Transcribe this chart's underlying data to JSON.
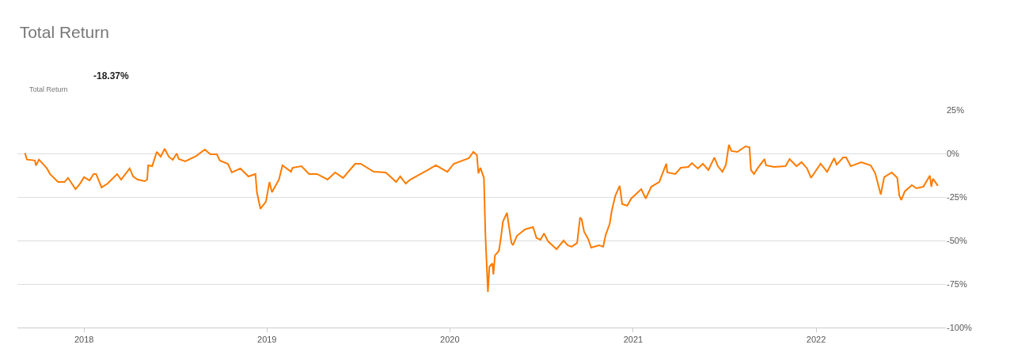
{
  "chart_data": {
    "type": "line",
    "title": "Total Return",
    "annotations": [
      "-18.37%",
      "Total Return"
    ],
    "x": [
      "2017-09-05",
      "2017-09-09",
      "2017-09-25",
      "2017-09-27",
      "2017-10-03",
      "2017-10-19",
      "2017-10-25",
      "2017-11-10",
      "2017-11-23",
      "2017-11-30",
      "2017-12-15",
      "2017-12-24",
      "2018-01-01",
      "2018-01-12",
      "2018-01-20",
      "2018-01-25",
      "2018-02-05",
      "2018-02-17",
      "2018-03-08",
      "2018-03-16",
      "2018-04-02",
      "2018-04-09",
      "2018-04-18",
      "2018-05-02",
      "2018-05-07",
      "2018-05-09",
      "2018-05-17",
      "2018-05-26",
      "2018-06-03",
      "2018-06-11",
      "2018-06-19",
      "2018-06-27",
      "2018-07-05",
      "2018-07-09",
      "2018-07-22",
      "2018-08-13",
      "2018-08-30",
      "2018-09-10",
      "2018-09-23",
      "2018-09-29",
      "2018-10-15",
      "2018-10-23",
      "2018-11-09",
      "2018-11-25",
      "2018-12-09",
      "2018-12-12",
      "2018-12-19",
      "2018-12-30",
      "2019-01-06",
      "2019-01-11",
      "2019-01-25",
      "2019-02-01",
      "2019-02-18",
      "2019-02-21",
      "2019-03-11",
      "2019-03-26",
      "2019-04-11",
      "2019-05-02",
      "2019-05-17",
      "2019-06-02",
      "2019-06-26",
      "2019-07-07",
      "2019-08-02",
      "2019-08-26",
      "2019-09-16",
      "2019-09-24",
      "2019-10-05",
      "2019-10-14",
      "2019-11-18",
      "2019-12-04",
      "2019-12-27",
      "2020-01-09",
      "2020-02-08",
      "2020-02-17",
      "2020-02-24",
      "2020-02-27",
      "2020-03-02",
      "2020-03-09",
      "2020-03-12",
      "2020-03-17",
      "2020-03-20",
      "2020-03-26",
      "2020-03-28",
      "2020-03-31",
      "2020-04-08",
      "2020-04-12",
      "2020-04-16",
      "2020-04-24",
      "2020-05-03",
      "2020-05-06",
      "2020-05-14",
      "2020-05-30",
      "2020-06-15",
      "2020-06-22",
      "2020-06-30",
      "2020-07-07",
      "2020-07-15",
      "2020-08-01",
      "2020-08-15",
      "2020-08-23",
      "2020-08-31",
      "2020-09-11",
      "2020-09-17",
      "2020-09-20",
      "2020-09-25",
      "2020-10-03",
      "2020-10-09",
      "2020-10-25",
      "2020-11-02",
      "2020-11-07",
      "2020-11-15",
      "2020-11-19",
      "2020-11-26",
      "2020-12-05",
      "2020-12-10",
      "2020-12-20",
      "2020-12-28",
      "2021-01-17",
      "2021-01-26",
      "2021-02-06",
      "2021-02-22",
      "2021-03-08",
      "2021-03-10",
      "2021-03-26",
      "2021-04-06",
      "2021-04-21",
      "2021-04-28",
      "2021-05-10",
      "2021-05-20",
      "2021-05-31",
      "2021-06-12",
      "2021-06-19",
      "2021-06-28",
      "2021-07-05",
      "2021-07-11",
      "2021-07-16",
      "2021-07-28",
      "2021-08-13",
      "2021-08-21",
      "2021-08-24",
      "2021-08-30",
      "2021-09-06",
      "2021-09-20",
      "2021-09-23",
      "2021-10-09",
      "2021-11-01",
      "2021-11-09",
      "2021-11-23",
      "2021-12-03",
      "2021-12-14",
      "2021-12-22",
      "2022-01-10",
      "2022-01-23",
      "2022-02-06",
      "2022-02-11",
      "2022-02-24",
      "2022-03-02",
      "2022-03-11",
      "2022-04-01",
      "2022-04-20",
      "2022-04-29",
      "2022-05-10",
      "2022-05-17",
      "2022-06-01",
      "2022-06-12",
      "2022-06-16",
      "2022-06-20",
      "2022-06-27",
      "2022-07-11",
      "2022-07-20",
      "2022-08-03",
      "2022-08-16",
      "2022-08-19",
      "2022-08-22",
      "2022-09-01"
    ],
    "series": [
      {
        "color": "#ff7b00",
        "values": [
          0.3,
          -3.5,
          -4,
          -7,
          -3.5,
          -8.6,
          -11.8,
          -16.4,
          -16.4,
          -14,
          -20.5,
          -17.3,
          -13.6,
          -15.5,
          -11.8,
          -11.8,
          -19.5,
          -17.3,
          -11.8,
          -15,
          -8.6,
          -13.2,
          -15,
          -15.9,
          -15,
          -6.8,
          -7.3,
          0.9,
          -1.8,
          2.7,
          -1.8,
          -3.6,
          0,
          -3.2,
          -4.5,
          -1.4,
          2.3,
          -0.5,
          -0.5,
          -4.1,
          -5.9,
          -10.9,
          -8.6,
          -13.2,
          -11.8,
          -22.3,
          -31.8,
          -27.7,
          -16.4,
          -22.3,
          -15,
          -6.8,
          -10.5,
          -8.2,
          -7.3,
          -11.8,
          -11.8,
          -15,
          -10.9,
          -14,
          -5.9,
          -5.9,
          -10.5,
          -10.9,
          -16.4,
          -13.2,
          -17.3,
          -15,
          -9.5,
          -6.8,
          -10.5,
          -5.9,
          -2.7,
          0.9,
          -0.9,
          -11.4,
          -8.2,
          -14,
          -46.8,
          -79.5,
          -65,
          -63.2,
          -69.5,
          -58.6,
          -55.9,
          -48.2,
          -39.1,
          -34.1,
          -51.4,
          -52.7,
          -47.3,
          -43.6,
          -42.3,
          -48.6,
          -49.5,
          -45.9,
          -50.5,
          -55,
          -50,
          -52.7,
          -53.6,
          -51.4,
          -36.8,
          -37.7,
          -45,
          -49.1,
          -54.1,
          -52.7,
          -53.6,
          -46.8,
          -40.5,
          -33.2,
          -24.5,
          -18.6,
          -29.1,
          -30,
          -25.9,
          -20.5,
          -25.9,
          -19.1,
          -16.4,
          -5.9,
          -10.9,
          -11.8,
          -8.2,
          -7.7,
          -5.5,
          -8.6,
          -5.9,
          -9.5,
          -2.3,
          -7.3,
          -10.5,
          -6.4,
          5,
          1.4,
          0.9,
          4.1,
          3.6,
          -9.5,
          -11.8,
          -8.6,
          -3.2,
          -6.8,
          -7.7,
          -7.3,
          -3.2,
          -7.3,
          -5,
          -8.6,
          -14,
          -5.9,
          -10.5,
          -2.7,
          -6.4,
          -2.3,
          -2.3,
          -7.3,
          -5,
          -6.8,
          -11.4,
          -23.6,
          -13.6,
          -10.9,
          -14,
          -24.1,
          -26.8,
          -21.8,
          -18.2,
          -20,
          -19.1,
          -12.7,
          -19.1,
          -14.5,
          -18.6
        ]
      }
    ],
    "xlim": [
      "2017-08-21",
      "2022-09-17"
    ],
    "xticks": [
      {
        "value": "2018-01-01",
        "label": "2018"
      },
      {
        "value": "2019-01-01",
        "label": "2019"
      },
      {
        "value": "2020-01-01",
        "label": "2020"
      },
      {
        "value": "2021-01-01",
        "label": "2021"
      },
      {
        "value": "2022-01-01",
        "label": "2022"
      }
    ],
    "ylim": [
      -100,
      25
    ],
    "yticks": [
      {
        "value": 25,
        "label": "25%"
      },
      {
        "value": 0,
        "label": "0%"
      },
      {
        "value": -25,
        "label": "-25%"
      },
      {
        "value": -50,
        "label": "-50%"
      },
      {
        "value": -75,
        "label": "-75%"
      },
      {
        "value": -100,
        "label": "-100%"
      }
    ],
    "grid": "y",
    "legend": false,
    "marker": "none",
    "line_style": "solid"
  }
}
